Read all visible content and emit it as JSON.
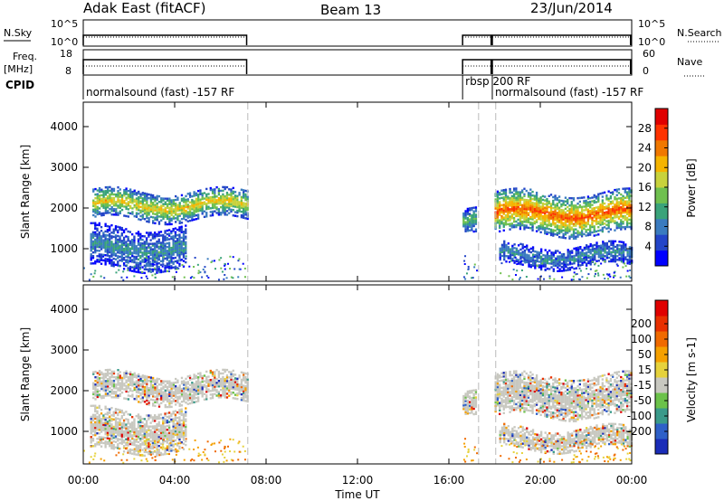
{
  "header": {
    "station": "Adak East (fitACF)",
    "beam": "Beam 13",
    "date": "23/Jun/2014"
  },
  "strip_labels": {
    "nsky": "N.Sky",
    "nsky_ticks": [
      "10^5",
      "10^0"
    ],
    "nsearch": "N.Search",
    "nsearch_ticks": [
      "10^5",
      "10^0"
    ],
    "freq": "Freq.",
    "freq_unit": "[MHz]",
    "freq_ticks": [
      "18",
      "8"
    ],
    "nave": "Nave",
    "nave_ticks": [
      "60",
      "0"
    ],
    "cpid": "CPID"
  },
  "cpid_segments": [
    {
      "label": "normalsound (fast) -157 RF",
      "start_h": 0.0,
      "end_h": 7.2
    },
    {
      "label": "rbsp 200 RF",
      "start_h": 16.6,
      "end_h": 17.9
    },
    {
      "label": "normalsound (fast) -157 RF",
      "start_h": 17.9,
      "end_h": 24.0
    }
  ],
  "chart_data": [
    {
      "type": "heatmap",
      "panel": "power",
      "xlabel": "Time UT",
      "ylabel": "Slant Range [km]",
      "x_ticks": [
        "00:00",
        "04:00",
        "08:00",
        "12:00",
        "16:00",
        "20:00",
        "00:00"
      ],
      "xlim_h": [
        0,
        24
      ],
      "ylim": [
        200,
        4600
      ],
      "y_ticks": [
        1000,
        2000,
        3000,
        4000
      ],
      "colorbar": {
        "label": "Power [dB]",
        "ticks": [
          4,
          8,
          12,
          16,
          20,
          24,
          28
        ],
        "range": [
          0,
          32
        ],
        "colors": [
          "#0000ff",
          "#2345c8",
          "#3a7bbf",
          "#3aa37a",
          "#6fc04f",
          "#c8d23c",
          "#f5b400",
          "#f07800",
          "#ff3300",
          "#e00000"
        ]
      },
      "data_gaps_h": [
        [
          7.2,
          16.6
        ],
        [
          17.3,
          17.9
        ]
      ],
      "echo_bands": [
        {
          "t_start": 0.4,
          "t_end": 7.2,
          "range_center": 2050,
          "range_width": 350,
          "peak_db": 20
        },
        {
          "t_start": 0.3,
          "t_end": 4.5,
          "range_center": 1000,
          "range_width": 500,
          "peak_db": 10
        },
        {
          "t_start": 18.0,
          "t_end": 24.0,
          "range_center": 1850,
          "range_width": 500,
          "peak_db": 26
        },
        {
          "t_start": 18.2,
          "t_end": 24.0,
          "range_center": 800,
          "range_width": 250,
          "peak_db": 10
        },
        {
          "t_start": 16.6,
          "t_end": 17.2,
          "range_center": 1600,
          "range_width": 300,
          "peak_db": 14
        }
      ]
    },
    {
      "type": "heatmap",
      "panel": "velocity",
      "xlabel": "Time UT",
      "ylabel": "Slant Range [km]",
      "x_ticks": [
        "00:00",
        "04:00",
        "08:00",
        "12:00",
        "16:00",
        "20:00",
        "00:00"
      ],
      "xlim_h": [
        0,
        24
      ],
      "ylim": [
        200,
        4600
      ],
      "y_ticks": [
        1000,
        2000,
        3000,
        4000
      ],
      "colorbar": {
        "label": "Velocity [m s-1]",
        "ticks": [
          200,
          100,
          50,
          15,
          -15,
          -50,
          -100,
          -200
        ],
        "colors": [
          "#1a2cb8",
          "#2e60c8",
          "#3a9a8a",
          "#6bc24a",
          "#c8c8c0",
          "#e6d23c",
          "#f5a000",
          "#f06a00",
          "#e83000",
          "#e00000"
        ]
      },
      "data_gaps_h": [
        [
          7.2,
          16.6
        ],
        [
          17.3,
          17.9
        ]
      ]
    }
  ]
}
